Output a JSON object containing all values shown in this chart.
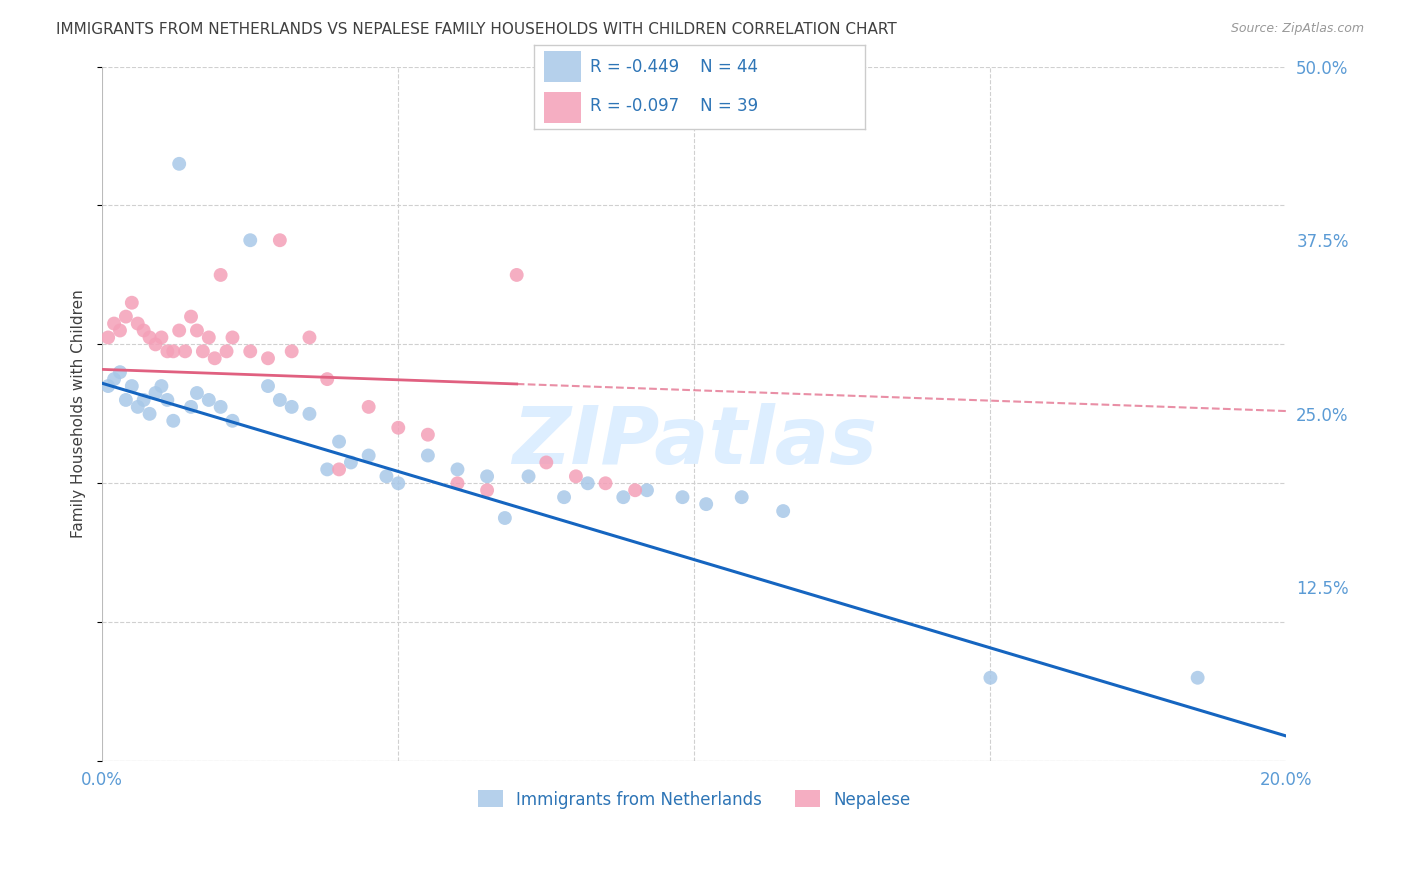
{
  "title": "IMMIGRANTS FROM NETHERLANDS VS NEPALESE FAMILY HOUSEHOLDS WITH CHILDREN CORRELATION CHART",
  "source": "Source: ZipAtlas.com",
  "ylabel": "Family Households with Children",
  "x_min": 0.0,
  "x_max": 0.2,
  "y_min": 0.0,
  "y_max": 0.5,
  "x_ticks": [
    0.0,
    0.05,
    0.1,
    0.15,
    0.2
  ],
  "x_tick_labels": [
    "0.0%",
    "",
    "",
    "",
    "20.0%"
  ],
  "y_ticks": [
    0.0,
    0.125,
    0.25,
    0.375,
    0.5
  ],
  "y_tick_labels_right": [
    "",
    "12.5%",
    "25.0%",
    "37.5%",
    "50.0%"
  ],
  "blue_color": "#a8c8e8",
  "pink_color": "#f4a0b8",
  "blue_line_color": "#1565c0",
  "pink_line_color": "#e06080",
  "blue_label": "Immigrants from Netherlands",
  "pink_label": "Nepalese",
  "blue_scatter_x": [
    0.001,
    0.002,
    0.003,
    0.004,
    0.005,
    0.006,
    0.007,
    0.008,
    0.009,
    0.01,
    0.011,
    0.012,
    0.013,
    0.015,
    0.016,
    0.018,
    0.02,
    0.022,
    0.025,
    0.028,
    0.03,
    0.032,
    0.035,
    0.038,
    0.04,
    0.042,
    0.045,
    0.048,
    0.05,
    0.055,
    0.06,
    0.065,
    0.068,
    0.072,
    0.078,
    0.082,
    0.088,
    0.092,
    0.098,
    0.102,
    0.108,
    0.115,
    0.15,
    0.185
  ],
  "blue_scatter_y": [
    0.27,
    0.275,
    0.28,
    0.26,
    0.27,
    0.255,
    0.26,
    0.25,
    0.265,
    0.27,
    0.26,
    0.245,
    0.43,
    0.255,
    0.265,
    0.26,
    0.255,
    0.245,
    0.375,
    0.27,
    0.26,
    0.255,
    0.25,
    0.21,
    0.23,
    0.215,
    0.22,
    0.205,
    0.2,
    0.22,
    0.21,
    0.205,
    0.175,
    0.205,
    0.19,
    0.2,
    0.19,
    0.195,
    0.19,
    0.185,
    0.19,
    0.18,
    0.06,
    0.06
  ],
  "pink_scatter_x": [
    0.001,
    0.002,
    0.003,
    0.004,
    0.005,
    0.006,
    0.007,
    0.008,
    0.009,
    0.01,
    0.011,
    0.012,
    0.013,
    0.014,
    0.015,
    0.016,
    0.017,
    0.018,
    0.019,
    0.02,
    0.021,
    0.022,
    0.025,
    0.028,
    0.03,
    0.032,
    0.035,
    0.038,
    0.04,
    0.045,
    0.05,
    0.055,
    0.06,
    0.065,
    0.07,
    0.075,
    0.08,
    0.085,
    0.09
  ],
  "pink_scatter_y": [
    0.305,
    0.315,
    0.31,
    0.32,
    0.33,
    0.315,
    0.31,
    0.305,
    0.3,
    0.305,
    0.295,
    0.295,
    0.31,
    0.295,
    0.32,
    0.31,
    0.295,
    0.305,
    0.29,
    0.35,
    0.295,
    0.305,
    0.295,
    0.29,
    0.375,
    0.295,
    0.305,
    0.275,
    0.21,
    0.255,
    0.24,
    0.235,
    0.2,
    0.195,
    0.35,
    0.215,
    0.205,
    0.2,
    0.195
  ],
  "blue_trend_x": [
    0.0,
    0.2
  ],
  "blue_trend_y": [
    0.272,
    0.018
  ],
  "pink_trend_x": [
    0.0,
    0.2
  ],
  "pink_trend_y": [
    0.282,
    0.252
  ],
  "background_color": "#ffffff",
  "grid_color": "#d0d0d0",
  "title_color": "#404040",
  "tick_label_color": "#5b9bd5",
  "watermark_text": "ZIPatlas",
  "watermark_color": "#ddeeff"
}
